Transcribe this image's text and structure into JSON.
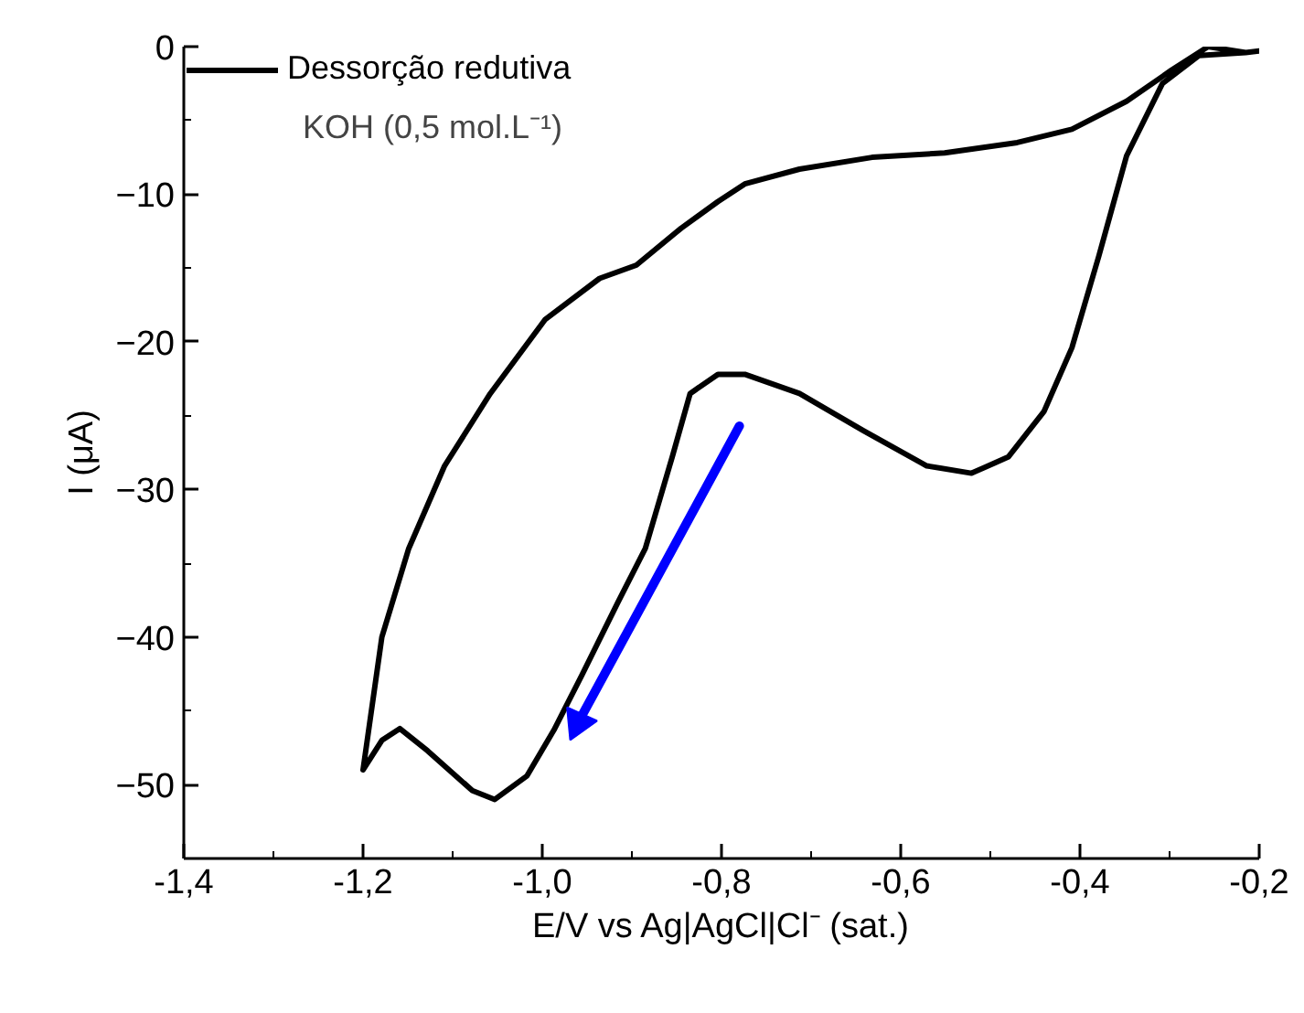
{
  "chart_data": {
    "type": "line",
    "xlabel": "E/V vs Ag|AgCl|Cl⁻ (sat.)",
    "ylabel": "I (μA)",
    "xlim": [
      -1.4,
      -0.2
    ],
    "ylim": [
      -55,
      0
    ],
    "xticks": [
      {
        "value": -1.4,
        "label": "-1,4"
      },
      {
        "value": -1.2,
        "label": "-1,2"
      },
      {
        "value": -1.0,
        "label": "-1,0"
      },
      {
        "value": -0.8,
        "label": "-0,8"
      },
      {
        "value": -0.6,
        "label": "-0,6"
      },
      {
        "value": -0.4,
        "label": "-0,4"
      },
      {
        "value": -0.2,
        "label": "-0,2"
      }
    ],
    "yticks": [
      -50,
      -40,
      -30,
      -20,
      -10,
      0
    ],
    "grid": false,
    "legend": "top left",
    "annotations": [
      "KOH (0,5 mol.L⁻¹)"
    ],
    "series": [
      {
        "name": "Dessorção redutiva",
        "color": "#000000",
        "x": [
          -0.2,
          -0.215,
          -0.257,
          -0.298,
          -0.348,
          -0.409,
          -0.47,
          -0.551,
          -0.632,
          -0.713,
          -0.774,
          -0.804,
          -0.845,
          -0.895,
          -0.936,
          -0.997,
          -1.058,
          -1.109,
          -1.149,
          -1.179,
          -1.193,
          -1.2,
          -1.179,
          -1.159,
          -1.128,
          -1.078,
          -1.053,
          -1.017,
          -0.987,
          -0.956,
          -0.916,
          -0.885,
          -0.855,
          -0.835,
          -0.804,
          -0.774,
          -0.713,
          -0.642,
          -0.571,
          -0.521,
          -0.48,
          -0.44,
          -0.409,
          -0.379,
          -0.348,
          -0.308,
          -0.267,
          -0.215
        ],
        "values": [
          -0.3,
          -0.4,
          0.0,
          -1.6,
          -3.7,
          -5.6,
          -6.5,
          -7.2,
          -7.5,
          -8.3,
          -9.3,
          -10.5,
          -12.3,
          -14.8,
          -15.7,
          -18.5,
          -23.5,
          -28.4,
          -34,
          -40,
          -46,
          -49,
          -47,
          -46.2,
          -47.7,
          -50.4,
          -51,
          -49.4,
          -46.3,
          -42.6,
          -37.7,
          -34,
          -27.8,
          -23.5,
          -22.2,
          -22.2,
          -23.5,
          -26,
          -28.4,
          -28.9,
          -27.8,
          -24.7,
          -20.4,
          -14.2,
          -7.4,
          -2.5,
          -0.6,
          -0.4
        ]
      },
      {
        "color": "#0000ff",
        "x": [
          -0.78,
          -0.96
        ],
        "values": [
          -25.7,
          -45.8
        ]
      }
    ]
  }
}
